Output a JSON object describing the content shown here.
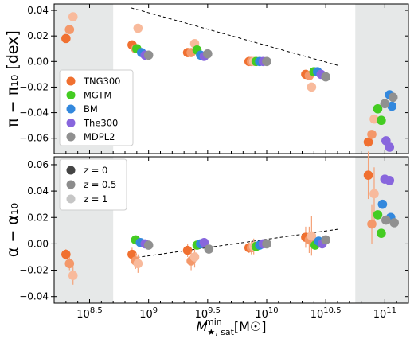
{
  "chart_data": [
    {
      "type": "scatter",
      "panel": "top",
      "ylabel": "π − π₁₀ [dex]",
      "ylim": [
        -0.072,
        0.045
      ],
      "yticks": [
        "0.04",
        "0.02",
        "0.00",
        "−0.02",
        "−0.04",
        "−0.06"
      ],
      "legend": [
        "TNG300",
        "MGTM",
        "BM",
        "The300",
        "MDPL2"
      ],
      "legend_position": "middle-left",
      "shaded_regions_log_mass": [
        [
          8.2,
          8.7
        ],
        [
          10.75,
          11.2
        ]
      ],
      "fit_line": {
        "x": [
          8.85,
          10.6
        ],
        "y": [
          0.042,
          -0.003
        ]
      },
      "series": [
        {
          "name": "TNG300",
          "color": "#f07030",
          "points": [
            {
              "x": 8.3,
              "y": 0.018,
              "z": 0
            },
            {
              "x": 8.33,
              "y": 0.025,
              "z": 0.5
            },
            {
              "x": 8.36,
              "y": 0.035,
              "z": 1
            },
            {
              "x": 8.86,
              "y": 0.013,
              "z": 0
            },
            {
              "x": 8.89,
              "y": 0.01,
              "z": 0.5
            },
            {
              "x": 8.91,
              "y": 0.026,
              "z": 1
            },
            {
              "x": 9.33,
              "y": 0.007,
              "z": 0
            },
            {
              "x": 9.36,
              "y": 0.007,
              "z": 0.5
            },
            {
              "x": 9.39,
              "y": 0.014,
              "z": 1
            },
            {
              "x": 9.85,
              "y": 0.0,
              "z": 0
            },
            {
              "x": 9.87,
              "y": 0.0,
              "z": 0.5
            },
            {
              "x": 9.89,
              "y": 0.0,
              "z": 1
            },
            {
              "x": 10.33,
              "y": -0.01,
              "z": 0
            },
            {
              "x": 10.36,
              "y": -0.011,
              "z": 0.5
            },
            {
              "x": 10.38,
              "y": -0.02,
              "z": 1
            },
            {
              "x": 10.86,
              "y": -0.063,
              "z": 0
            },
            {
              "x": 10.89,
              "y": -0.057,
              "z": 0.5
            },
            {
              "x": 10.91,
              "y": -0.045,
              "z": 1
            }
          ]
        },
        {
          "name": "MGTM",
          "color": "#44cc22",
          "points": [
            {
              "x": 8.9,
              "y": 0.01
            },
            {
              "x": 9.41,
              "y": 0.009
            },
            {
              "x": 9.91,
              "y": 0.0
            },
            {
              "x": 10.4,
              "y": -0.008
            },
            {
              "x": 10.94,
              "y": -0.037
            },
            {
              "x": 10.97,
              "y": -0.046
            }
          ]
        },
        {
          "name": "BM",
          "color": "#3388dd",
          "points": [
            {
              "x": 8.94,
              "y": 0.007
            },
            {
              "x": 9.44,
              "y": 0.005
            },
            {
              "x": 9.94,
              "y": 0.0
            },
            {
              "x": 10.43,
              "y": -0.008
            },
            {
              "x": 11.04,
              "y": -0.026
            },
            {
              "x": 11.06,
              "y": -0.035
            }
          ]
        },
        {
          "name": "The300",
          "color": "#8866dd",
          "points": [
            {
              "x": 8.97,
              "y": 0.005
            },
            {
              "x": 9.47,
              "y": 0.004
            },
            {
              "x": 9.97,
              "y": 0.0
            },
            {
              "x": 10.46,
              "y": -0.01
            },
            {
              "x": 11.01,
              "y": -0.062
            },
            {
              "x": 11.04,
              "y": -0.067
            }
          ]
        },
        {
          "name": "MDPL2",
          "color": "#909090",
          "points": [
            {
              "x": 9.0,
              "y": 0.005
            },
            {
              "x": 9.5,
              "y": 0.006
            },
            {
              "x": 10.0,
              "y": 0.0
            },
            {
              "x": 10.5,
              "y": -0.012
            },
            {
              "x": 11.0,
              "y": -0.033
            },
            {
              "x": 11.07,
              "y": -0.028
            }
          ]
        }
      ]
    },
    {
      "type": "scatter",
      "panel": "bottom",
      "xlabel": "M★,sat^min [M☉]",
      "ylabel": "α − α₁₀",
      "ylim": [
        -0.045,
        0.066
      ],
      "yticks": [
        "0.06",
        "0.04",
        "0.02",
        "0.00",
        "−0.02",
        "−0.04"
      ],
      "xticks": [
        {
          "v": 8.5,
          "label": "10^8.5"
        },
        {
          "v": 9,
          "label": "10^9"
        },
        {
          "v": 9.5,
          "label": "10^9.5"
        },
        {
          "v": 10,
          "label": "10^10"
        },
        {
          "v": 10.5,
          "label": "10^10.5"
        },
        {
          "v": 11,
          "label": "10^11"
        }
      ],
      "xlim": [
        8.2,
        11.2
      ],
      "legend": [
        {
          "label": "z = 0",
          "z": 0
        },
        {
          "label": "z = 0.5",
          "z": 0.5
        },
        {
          "label": "z = 1",
          "z": 1
        }
      ],
      "legend_position": "top-left",
      "shaded_regions_log_mass": [
        [
          8.2,
          8.7
        ],
        [
          10.75,
          11.2
        ]
      ],
      "fit_line": {
        "x": [
          8.85,
          10.6
        ],
        "y": [
          -0.011,
          0.011
        ]
      },
      "series": [
        {
          "name": "TNG300",
          "color": "#f07030",
          "points": [
            {
              "x": 8.3,
              "y": -0.008,
              "err": 0.004,
              "z": 0
            },
            {
              "x": 8.33,
              "y": -0.015,
              "err": 0.005,
              "z": 0.5
            },
            {
              "x": 8.36,
              "y": -0.024,
              "err": 0.007,
              "z": 1
            },
            {
              "x": 8.86,
              "y": -0.008,
              "err": 0.005,
              "z": 0
            },
            {
              "x": 8.89,
              "y": -0.013,
              "err": 0.006,
              "z": 0.5
            },
            {
              "x": 8.91,
              "y": -0.015,
              "err": 0.007,
              "z": 1
            },
            {
              "x": 9.33,
              "y": -0.005,
              "err": 0.005,
              "z": 0
            },
            {
              "x": 9.36,
              "y": -0.013,
              "err": 0.007,
              "z": 0.5
            },
            {
              "x": 9.39,
              "y": -0.01,
              "err": 0.008,
              "z": 1
            },
            {
              "x": 9.85,
              "y": -0.003,
              "err": 0.004,
              "z": 0
            },
            {
              "x": 9.87,
              "y": -0.003,
              "err": 0.005,
              "z": 0.5
            },
            {
              "x": 9.89,
              "y": -0.002,
              "err": 0.006,
              "z": 1
            },
            {
              "x": 10.33,
              "y": 0.005,
              "err": 0.008,
              "z": 0
            },
            {
              "x": 10.36,
              "y": 0.003,
              "err": 0.01,
              "z": 0.5
            },
            {
              "x": 10.38,
              "y": 0.006,
              "err": 0.015,
              "z": 1
            },
            {
              "x": 10.86,
              "y": 0.052,
              "err": 0.018,
              "z": 0
            },
            {
              "x": 10.89,
              "y": 0.015,
              "err": 0.015,
              "z": 0.5
            },
            {
              "x": 10.91,
              "y": 0.038,
              "err": 0.02,
              "z": 1
            }
          ]
        },
        {
          "name": "MGTM",
          "color": "#44cc22",
          "points": [
            {
              "x": 8.89,
              "y": 0.003
            },
            {
              "x": 9.41,
              "y": -0.001
            },
            {
              "x": 9.91,
              "y": -0.002
            },
            {
              "x": 10.41,
              "y": -0.001
            },
            {
              "x": 10.94,
              "y": 0.022
            },
            {
              "x": 10.97,
              "y": 0.008
            }
          ]
        },
        {
          "name": "BM",
          "color": "#3388dd",
          "points": [
            {
              "x": 8.93,
              "y": 0.001
            },
            {
              "x": 9.44,
              "y": 0.0
            },
            {
              "x": 9.94,
              "y": -0.001
            },
            {
              "x": 10.44,
              "y": 0.002
            },
            {
              "x": 10.98,
              "y": 0.03
            },
            {
              "x": 11.05,
              "y": 0.02
            }
          ]
        },
        {
          "name": "The300",
          "color": "#8866dd",
          "points": [
            {
              "x": 8.97,
              "y": 0.0
            },
            {
              "x": 9.47,
              "y": 0.001
            },
            {
              "x": 9.97,
              "y": 0.0
            },
            {
              "x": 10.47,
              "y": 0.0
            },
            {
              "x": 11.0,
              "y": 0.049
            },
            {
              "x": 11.04,
              "y": 0.048
            }
          ]
        },
        {
          "name": "MDPL2",
          "color": "#909090",
          "points": [
            {
              "x": 9.0,
              "y": -0.001
            },
            {
              "x": 9.51,
              "y": -0.004
            },
            {
              "x": 10.0,
              "y": 0.0
            },
            {
              "x": 10.5,
              "y": 0.003
            },
            {
              "x": 11.01,
              "y": 0.018
            },
            {
              "x": 11.08,
              "y": 0.016
            }
          ]
        }
      ]
    }
  ]
}
